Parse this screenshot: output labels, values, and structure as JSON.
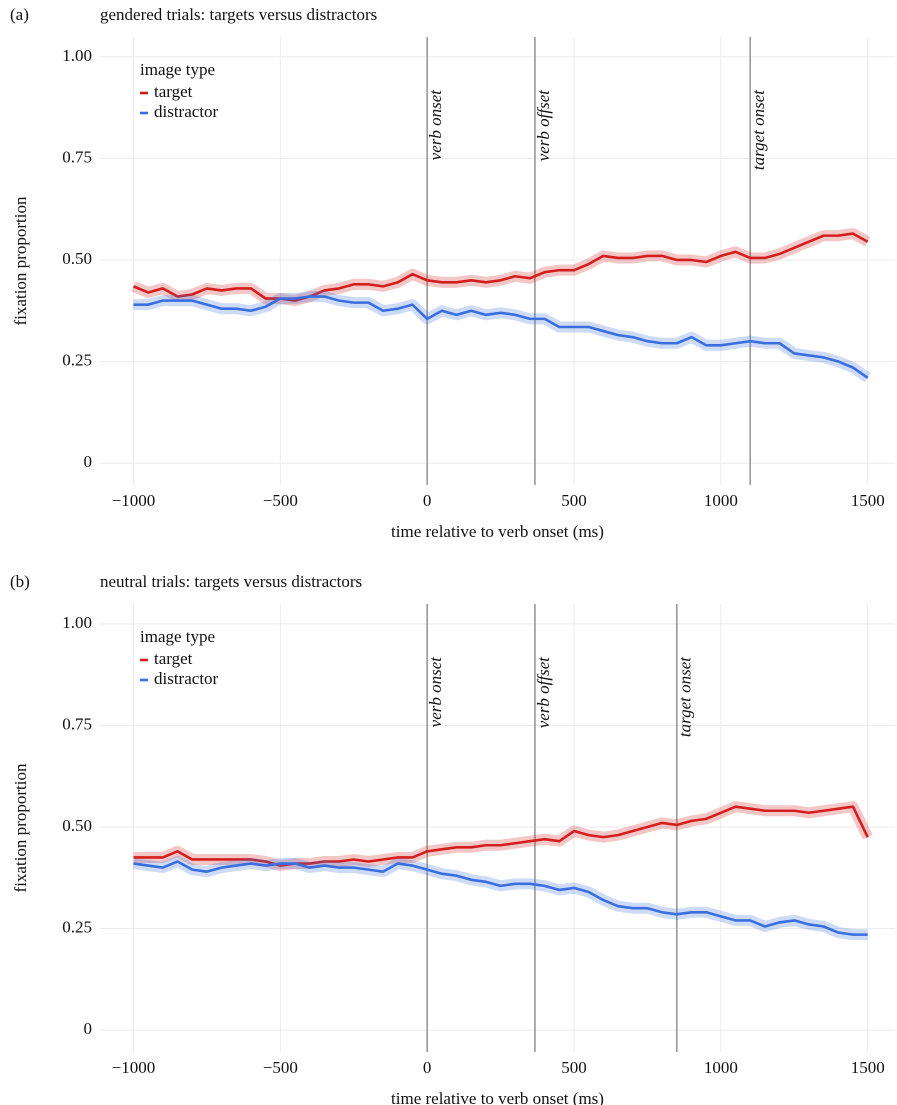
{
  "chart_data": [
    {
      "type": "line",
      "panel_label": "(a)",
      "title": "gendered trials: targets versus distractors",
      "xlabel": "time relative to verb onset (ms)",
      "ylabel": "fixation proportion",
      "legend_title": "image type",
      "legend": "top-left",
      "grid": true,
      "x": [
        -1000,
        -950,
        -900,
        -850,
        -800,
        -750,
        -700,
        -650,
        -600,
        -550,
        -500,
        -450,
        -400,
        -350,
        -300,
        -250,
        -200,
        -150,
        -100,
        -50,
        0,
        50,
        100,
        150,
        200,
        250,
        300,
        350,
        400,
        450,
        500,
        550,
        600,
        650,
        700,
        750,
        800,
        850,
        900,
        950,
        1000,
        1050,
        1100,
        1150,
        1200,
        1250,
        1300,
        1350,
        1400,
        1450,
        1500
      ],
      "series": [
        {
          "name": "target",
          "color": "#d41f1f",
          "values": [
            0.435,
            0.42,
            0.43,
            0.41,
            0.415,
            0.43,
            0.425,
            0.43,
            0.43,
            0.405,
            0.405,
            0.4,
            0.41,
            0.425,
            0.43,
            0.44,
            0.44,
            0.435,
            0.445,
            0.465,
            0.45,
            0.445,
            0.445,
            0.45,
            0.445,
            0.45,
            0.46,
            0.455,
            0.47,
            0.475,
            0.475,
            0.49,
            0.51,
            0.505,
            0.505,
            0.51,
            0.51,
            0.5,
            0.5,
            0.495,
            0.51,
            0.52,
            0.505,
            0.505,
            0.515,
            0.53,
            0.545,
            0.56,
            0.56,
            0.565,
            0.545
          ]
        },
        {
          "name": "distractor",
          "color": "#3a6fe0",
          "values": [
            0.39,
            0.39,
            0.4,
            0.4,
            0.4,
            0.39,
            0.38,
            0.38,
            0.375,
            0.385,
            0.405,
            0.405,
            0.41,
            0.41,
            0.4,
            0.395,
            0.395,
            0.375,
            0.38,
            0.39,
            0.355,
            0.375,
            0.365,
            0.375,
            0.365,
            0.37,
            0.365,
            0.355,
            0.355,
            0.335,
            0.335,
            0.335,
            0.325,
            0.315,
            0.31,
            0.3,
            0.295,
            0.295,
            0.31,
            0.29,
            0.29,
            0.295,
            0.3,
            0.295,
            0.295,
            0.27,
            0.265,
            0.26,
            0.25,
            0.235,
            0.21
          ]
        }
      ],
      "annotations": [
        {
          "x": 0,
          "label": "verb onset"
        },
        {
          "x": 367,
          "label": "verb offset"
        },
        {
          "x": 1100,
          "label": "target onset"
        }
      ],
      "xlim": [
        -1114,
        1593
      ],
      "ylim": [
        -0.054,
        1.049
      ],
      "xticks": [
        {
          "value": -1000,
          "label": "−1000"
        },
        {
          "value": -500,
          "label": "−500"
        },
        0,
        500,
        1000,
        1500
      ],
      "yticks": [
        0,
        0.25,
        {
          "value": 0.5,
          "label": "0.50"
        },
        {
          "value": 0.75,
          "label": "0.75"
        },
        {
          "value": 1,
          "label": "1.00"
        }
      ]
    },
    {
      "type": "line",
      "panel_label": "(b)",
      "title": "neutral trials: targets versus distractors",
      "xlabel": "time relative to verb onset (ms)",
      "ylabel": "fixation proportion",
      "legend_title": "image type",
      "legend": "top-left",
      "grid": true,
      "x": [
        -1000,
        -950,
        -900,
        -850,
        -800,
        -750,
        -700,
        -650,
        -600,
        -550,
        -500,
        -450,
        -400,
        -350,
        -300,
        -250,
        -200,
        -150,
        -100,
        -50,
        0,
        50,
        100,
        150,
        200,
        250,
        300,
        350,
        400,
        450,
        500,
        550,
        600,
        650,
        700,
        750,
        800,
        850,
        900,
        950,
        1000,
        1050,
        1100,
        1150,
        1200,
        1250,
        1300,
        1350,
        1400,
        1450,
        1500
      ],
      "series": [
        {
          "name": "target",
          "color": "#d41f1f",
          "values": [
            0.425,
            0.425,
            0.425,
            0.44,
            0.42,
            0.42,
            0.42,
            0.42,
            0.42,
            0.415,
            0.405,
            0.41,
            0.41,
            0.415,
            0.415,
            0.42,
            0.415,
            0.42,
            0.425,
            0.425,
            0.44,
            0.445,
            0.45,
            0.45,
            0.455,
            0.455,
            0.46,
            0.465,
            0.47,
            0.465,
            0.49,
            0.48,
            0.475,
            0.48,
            0.49,
            0.5,
            0.51,
            0.505,
            0.515,
            0.52,
            0.535,
            0.55,
            0.545,
            0.54,
            0.54,
            0.54,
            0.535,
            0.54,
            0.545,
            0.55,
            0.475
          ]
        },
        {
          "name": "distractor",
          "color": "#3a6fe0",
          "values": [
            0.41,
            0.405,
            0.4,
            0.415,
            0.395,
            0.39,
            0.4,
            0.405,
            0.41,
            0.405,
            0.41,
            0.41,
            0.4,
            0.405,
            0.4,
            0.4,
            0.395,
            0.39,
            0.41,
            0.405,
            0.395,
            0.385,
            0.38,
            0.37,
            0.365,
            0.355,
            0.36,
            0.36,
            0.355,
            0.345,
            0.35,
            0.34,
            0.32,
            0.305,
            0.3,
            0.3,
            0.29,
            0.285,
            0.29,
            0.29,
            0.28,
            0.27,
            0.27,
            0.255,
            0.265,
            0.27,
            0.26,
            0.255,
            0.24,
            0.235,
            0.235
          ]
        }
      ],
      "annotations": [
        {
          "x": 0,
          "label": "verb onset"
        },
        {
          "x": 367,
          "label": "verb offset"
        },
        {
          "x": 850,
          "label": "target onset"
        }
      ],
      "xlim": [
        -1114,
        1593
      ],
      "ylim": [
        -0.054,
        1.049
      ],
      "xticks": [
        {
          "value": -1000,
          "label": "−1000"
        },
        {
          "value": -500,
          "label": "−500"
        },
        0,
        500,
        1000,
        1500
      ],
      "yticks": [
        0,
        0.25,
        {
          "value": 0.5,
          "label": "0.50"
        },
        {
          "value": 0.75,
          "label": "0.75"
        },
        {
          "value": 1,
          "label": "1.00"
        }
      ]
    }
  ]
}
